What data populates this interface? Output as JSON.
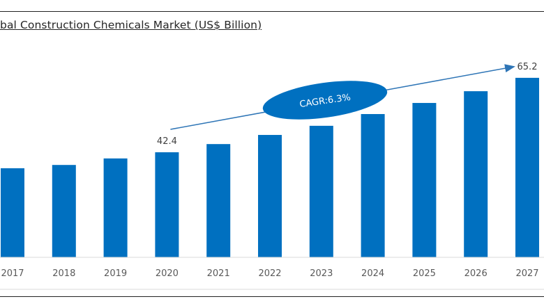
{
  "chart_data": {
    "type": "bar",
    "title": "bal Construction Chemicals Market (US$ Billion)",
    "xlabel": "",
    "ylabel": "",
    "categories": [
      "2017",
      "2018",
      "2019",
      "2020",
      "2021",
      "2022",
      "2023",
      "2024",
      "2025",
      "2026",
      "2027"
    ],
    "values": [
      37.5,
      38.5,
      40.5,
      42.4,
      44.9,
      47.7,
      50.5,
      54.1,
      57.5,
      61.1,
      65.2
    ],
    "data_labels": [
      {
        "category": "2020",
        "text": "42.4"
      },
      {
        "category": "2027",
        "text": "65.2"
      }
    ],
    "annotation": {
      "text": "CAGR:6.3%",
      "from": "2020",
      "to": "2027"
    },
    "bar_color": "#0070C0",
    "grid": false,
    "legend": "none"
  }
}
